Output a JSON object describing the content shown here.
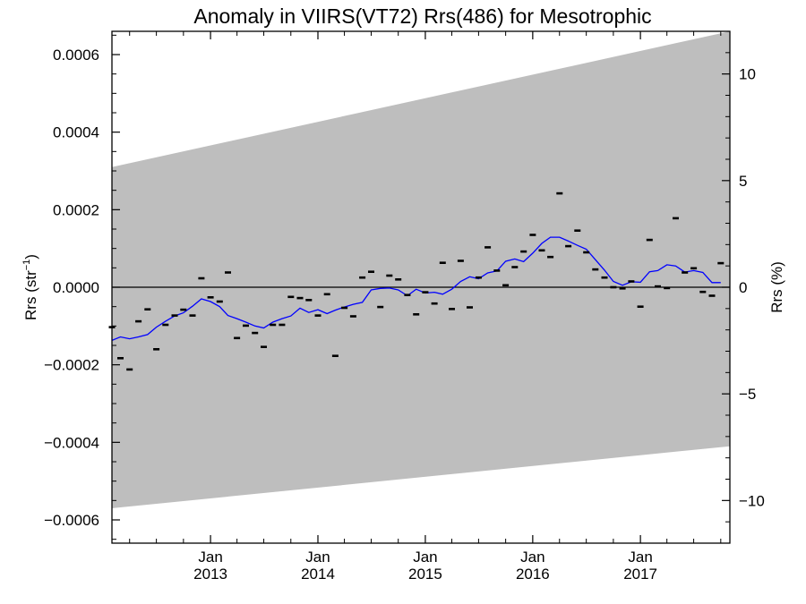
{
  "chart_data": {
    "type": "line",
    "title": "Anomaly in VIIRS(VT72) Rrs(486) for Mesotrophic",
    "ylabel_left_main": "Rrs (str",
    "ylabel_left_sup": "−1",
    "ylabel_left_close": ")",
    "ylabel_right": "Rrs (%)",
    "xlim": [
      "2012-02-01",
      "2017-11-01"
    ],
    "ylim_left": [
      -0.00066,
      0.00066
    ],
    "ylim_right": [
      -12,
      12
    ],
    "yticks_left": [
      {
        "value": 0.0006,
        "label": "0.0006"
      },
      {
        "value": 0.0004,
        "label": "0.0004"
      },
      {
        "value": 0.0002,
        "label": "0.0002"
      },
      {
        "value": 0.0,
        "label": "0.0000"
      },
      {
        "value": -0.0002,
        "label": "−0.0002"
      },
      {
        "value": -0.0004,
        "label": "−0.0004"
      },
      {
        "value": -0.0006,
        "label": "−0.0006"
      }
    ],
    "yticks_right": [
      {
        "value": 10,
        "label": "10"
      },
      {
        "value": 5,
        "label": "5"
      },
      {
        "value": 0,
        "label": "0"
      },
      {
        "value": -5,
        "label": "−5"
      },
      {
        "value": -10,
        "label": "−10"
      }
    ],
    "xticks": [
      {
        "date": "2013-01-01",
        "month": "Jan",
        "year": "2013"
      },
      {
        "date": "2014-01-01",
        "month": "Jan",
        "year": "2014"
      },
      {
        "date": "2015-01-01",
        "month": "Jan",
        "year": "2015"
      },
      {
        "date": "2016-01-01",
        "month": "Jan",
        "year": "2016"
      },
      {
        "date": "2017-01-01",
        "month": "Jan",
        "year": "2017"
      }
    ],
    "band": {
      "start_date": "2012-02-01",
      "end_date": "2017-11-01",
      "upper": [
        0.00031,
        0.00066
      ],
      "lower": [
        -0.00057,
        -0.00041
      ],
      "color": "#bebebe"
    },
    "zero_line": 0.0,
    "series": [
      {
        "kind": "markers",
        "color": "#000000",
        "points": [
          {
            "x": "2012-02-01",
            "y": -0.000103
          },
          {
            "x": "2012-03-01",
            "y": -0.000183
          },
          {
            "x": "2012-04-01",
            "y": -0.000212
          },
          {
            "x": "2012-05-01",
            "y": -8.8e-05
          },
          {
            "x": "2012-06-01",
            "y": -5.7e-05
          },
          {
            "x": "2012-07-01",
            "y": -0.00016
          },
          {
            "x": "2012-08-01",
            "y": -9.7e-05
          },
          {
            "x": "2012-09-01",
            "y": -7.3e-05
          },
          {
            "x": "2012-10-01",
            "y": -5.8e-05
          },
          {
            "x": "2012-11-01",
            "y": -7.3e-05
          },
          {
            "x": "2012-12-01",
            "y": 2.3e-05
          },
          {
            "x": "2013-01-01",
            "y": -2.6e-05
          },
          {
            "x": "2013-02-01",
            "y": -3.7e-05
          },
          {
            "x": "2013-03-01",
            "y": 3.8e-05
          },
          {
            "x": "2013-04-01",
            "y": -0.000131
          },
          {
            "x": "2013-05-01",
            "y": -9.9e-05
          },
          {
            "x": "2013-06-01",
            "y": -0.000118
          },
          {
            "x": "2013-07-01",
            "y": -0.000154
          },
          {
            "x": "2013-08-01",
            "y": -9.7e-05
          },
          {
            "x": "2013-09-01",
            "y": -9.7e-05
          },
          {
            "x": "2013-10-01",
            "y": -2.5e-05
          },
          {
            "x": "2013-11-01",
            "y": -2.8e-05
          },
          {
            "x": "2013-12-01",
            "y": -3.3e-05
          },
          {
            "x": "2014-01-01",
            "y": -7.3e-05
          },
          {
            "x": "2014-02-01",
            "y": -1.8e-05
          },
          {
            "x": "2014-03-01",
            "y": -0.000177
          },
          {
            "x": "2014-04-01",
            "y": -5.3e-05
          },
          {
            "x": "2014-05-01",
            "y": -7.5e-05
          },
          {
            "x": "2014-06-01",
            "y": 2.5e-05
          },
          {
            "x": "2014-07-01",
            "y": 4e-05
          },
          {
            "x": "2014-08-01",
            "y": -5.1e-05
          },
          {
            "x": "2014-09-01",
            "y": 3e-05
          },
          {
            "x": "2014-10-01",
            "y": 2e-05
          },
          {
            "x": "2014-11-01",
            "y": -2e-05
          },
          {
            "x": "2014-12-01",
            "y": -7e-05
          },
          {
            "x": "2015-01-01",
            "y": -1.3e-05
          },
          {
            "x": "2015-02-01",
            "y": -4.2e-05
          },
          {
            "x": "2015-03-01",
            "y": 6.3e-05
          },
          {
            "x": "2015-04-01",
            "y": -5.6e-05
          },
          {
            "x": "2015-05-01",
            "y": 6.8e-05
          },
          {
            "x": "2015-06-01",
            "y": -5.2e-05
          },
          {
            "x": "2015-07-01",
            "y": 2.5e-05
          },
          {
            "x": "2015-08-01",
            "y": 0.000103
          },
          {
            "x": "2015-09-01",
            "y": 4.3e-05
          },
          {
            "x": "2015-10-01",
            "y": 5e-06
          },
          {
            "x": "2015-11-01",
            "y": 5.2e-05
          },
          {
            "x": "2015-12-01",
            "y": 9.2e-05
          },
          {
            "x": "2016-01-01",
            "y": 0.000135
          },
          {
            "x": "2016-02-01",
            "y": 9.5e-05
          },
          {
            "x": "2016-03-01",
            "y": 7.8e-05
          },
          {
            "x": "2016-04-01",
            "y": 0.000242
          },
          {
            "x": "2016-05-01",
            "y": 0.000106
          },
          {
            "x": "2016-06-01",
            "y": 0.000146
          },
          {
            "x": "2016-07-01",
            "y": 9e-05
          },
          {
            "x": "2016-08-01",
            "y": 4.6e-05
          },
          {
            "x": "2016-09-01",
            "y": 2.5e-05
          },
          {
            "x": "2016-10-01",
            "y": 0.0
          },
          {
            "x": "2016-11-01",
            "y": -3e-06
          },
          {
            "x": "2016-12-01",
            "y": 1.5e-05
          },
          {
            "x": "2017-01-01",
            "y": -5e-05
          },
          {
            "x": "2017-02-01",
            "y": 0.000122
          },
          {
            "x": "2017-03-01",
            "y": 2e-06
          },
          {
            "x": "2017-04-01",
            "y": -2e-06
          },
          {
            "x": "2017-05-01",
            "y": 0.000178
          },
          {
            "x": "2017-06-01",
            "y": 3.8e-05
          },
          {
            "x": "2017-07-01",
            "y": 4.9e-05
          },
          {
            "x": "2017-08-01",
            "y": -1.2e-05
          },
          {
            "x": "2017-09-01",
            "y": -2.2e-05
          },
          {
            "x": "2017-10-01",
            "y": 6.2e-05
          }
        ]
      },
      {
        "kind": "line",
        "color": "#0000ff",
        "points": [
          {
            "x": "2012-02-01",
            "y": -0.000137
          },
          {
            "x": "2012-03-01",
            "y": -0.000128
          },
          {
            "x": "2012-04-01",
            "y": -0.000133
          },
          {
            "x": "2012-05-01",
            "y": -0.000128
          },
          {
            "x": "2012-06-01",
            "y": -0.000122
          },
          {
            "x": "2012-07-01",
            "y": -0.000103
          },
          {
            "x": "2012-08-01",
            "y": -8.8e-05
          },
          {
            "x": "2012-09-01",
            "y": -7.4e-05
          },
          {
            "x": "2012-10-01",
            "y": -6.6e-05
          },
          {
            "x": "2012-11-01",
            "y": -4.9e-05
          },
          {
            "x": "2012-12-01",
            "y": -3e-05
          },
          {
            "x": "2013-01-01",
            "y": -3.7e-05
          },
          {
            "x": "2013-02-01",
            "y": -5e-05
          },
          {
            "x": "2013-03-01",
            "y": -7.3e-05
          },
          {
            "x": "2013-04-01",
            "y": -8.1e-05
          },
          {
            "x": "2013-05-01",
            "y": -9e-05
          },
          {
            "x": "2013-06-01",
            "y": -0.0001
          },
          {
            "x": "2013-07-01",
            "y": -0.000105
          },
          {
            "x": "2013-08-01",
            "y": -9e-05
          },
          {
            "x": "2013-09-01",
            "y": -8.1e-05
          },
          {
            "x": "2013-10-01",
            "y": -7.4e-05
          },
          {
            "x": "2013-11-01",
            "y": -5.4e-05
          },
          {
            "x": "2013-12-01",
            "y": -6.5e-05
          },
          {
            "x": "2014-01-01",
            "y": -5.8e-05
          },
          {
            "x": "2014-02-01",
            "y": -6.8e-05
          },
          {
            "x": "2014-03-01",
            "y": -5.9e-05
          },
          {
            "x": "2014-04-01",
            "y": -5.1e-05
          },
          {
            "x": "2014-05-01",
            "y": -4.4e-05
          },
          {
            "x": "2014-06-01",
            "y": -3.9e-05
          },
          {
            "x": "2014-07-01",
            "y": -7e-06
          },
          {
            "x": "2014-08-01",
            "y": -3e-06
          },
          {
            "x": "2014-09-01",
            "y": -2e-06
          },
          {
            "x": "2014-10-01",
            "y": -7e-06
          },
          {
            "x": "2014-11-01",
            "y": -2.2e-05
          },
          {
            "x": "2014-12-01",
            "y": -5e-06
          },
          {
            "x": "2015-01-01",
            "y": -1.5e-05
          },
          {
            "x": "2015-02-01",
            "y": -1.3e-05
          },
          {
            "x": "2015-03-01",
            "y": -1.8e-05
          },
          {
            "x": "2015-04-01",
            "y": -5e-06
          },
          {
            "x": "2015-05-01",
            "y": 1.5e-05
          },
          {
            "x": "2015-06-01",
            "y": 2.7e-05
          },
          {
            "x": "2015-07-01",
            "y": 2.2e-05
          },
          {
            "x": "2015-08-01",
            "y": 3.7e-05
          },
          {
            "x": "2015-09-01",
            "y": 4.2e-05
          },
          {
            "x": "2015-10-01",
            "y": 6.7e-05
          },
          {
            "x": "2015-11-01",
            "y": 7.3e-05
          },
          {
            "x": "2015-12-01",
            "y": 6.6e-05
          },
          {
            "x": "2016-01-01",
            "y": 8.8e-05
          },
          {
            "x": "2016-02-01",
            "y": 0.000113
          },
          {
            "x": "2016-03-01",
            "y": 0.000129
          },
          {
            "x": "2016-04-01",
            "y": 0.000129
          },
          {
            "x": "2016-05-01",
            "y": 0.000119
          },
          {
            "x": "2016-06-01",
            "y": 0.000108
          },
          {
            "x": "2016-07-01",
            "y": 9.8e-05
          },
          {
            "x": "2016-08-01",
            "y": 7.1e-05
          },
          {
            "x": "2016-09-01",
            "y": 4.4e-05
          },
          {
            "x": "2016-10-01",
            "y": 1.5e-05
          },
          {
            "x": "2016-11-01",
            "y": 5e-06
          },
          {
            "x": "2016-12-01",
            "y": 1.4e-05
          },
          {
            "x": "2017-01-01",
            "y": 1.3e-05
          },
          {
            "x": "2017-02-01",
            "y": 4e-05
          },
          {
            "x": "2017-03-01",
            "y": 4.3e-05
          },
          {
            "x": "2017-04-01",
            "y": 5.8e-05
          },
          {
            "x": "2017-05-01",
            "y": 5.5e-05
          },
          {
            "x": "2017-06-01",
            "y": 3.9e-05
          },
          {
            "x": "2017-07-01",
            "y": 4.3e-05
          },
          {
            "x": "2017-08-01",
            "y": 3.8e-05
          },
          {
            "x": "2017-09-01",
            "y": 1.2e-05
          },
          {
            "x": "2017-10-01",
            "y": 1.2e-05
          }
        ]
      }
    ]
  }
}
